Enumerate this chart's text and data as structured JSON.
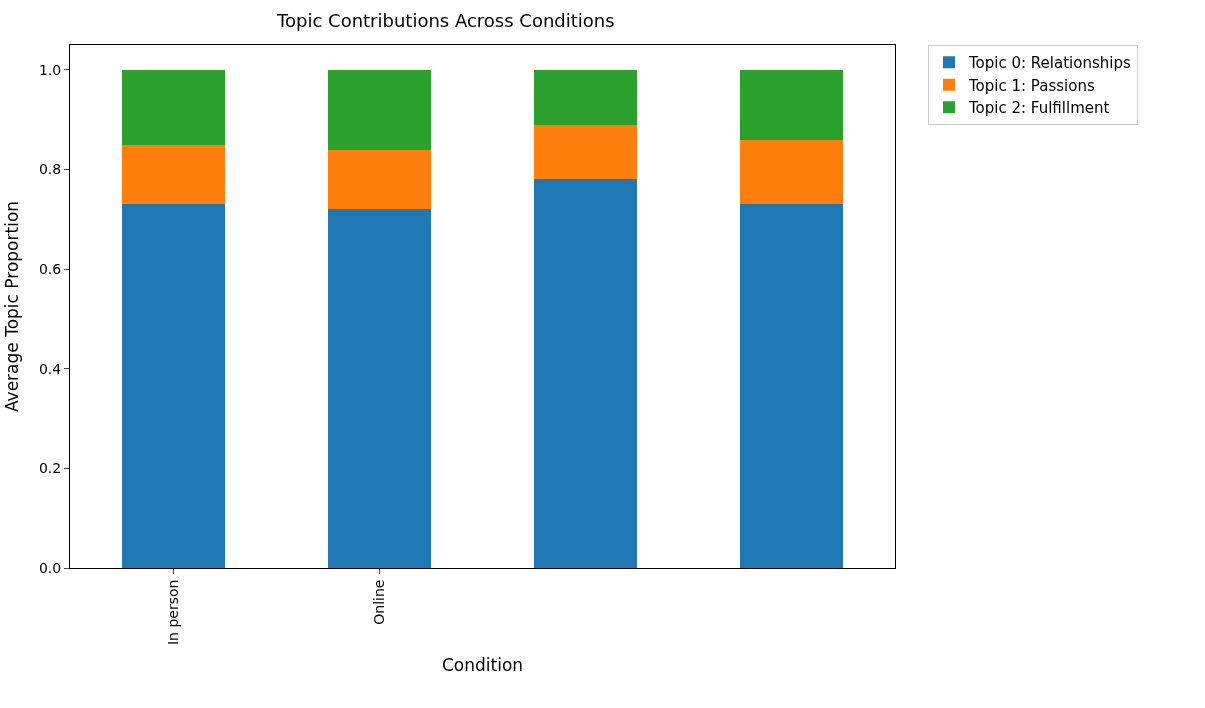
{
  "chart_data": {
    "type": "bar",
    "stacked": true,
    "title": "Topic Contributions Across Conditions",
    "xlabel": "Condition",
    "ylabel": "Average Topic Proportion",
    "categories": [
      "In person",
      "Online",
      null,
      null
    ],
    "series": [
      {
        "name": "Topic 0: Relationships",
        "color": "#1f77b4",
        "values": [
          0.73,
          0.72,
          0.78,
          0.73
        ]
      },
      {
        "name": "Topic 1: Passions",
        "color": "#ff7f0e",
        "values": [
          0.12,
          0.12,
          0.11,
          0.13
        ]
      },
      {
        "name": "Topic 2: Fulfillment",
        "color": "#2ca02c",
        "values": [
          0.15,
          0.16,
          0.11,
          0.14
        ]
      }
    ],
    "ylim": [
      0,
      1.05
    ],
    "yticks": [
      {
        "value": 0,
        "label": "0.0"
      },
      {
        "value": 0.2,
        "label": "0.2"
      },
      {
        "value": 0.4,
        "label": "0.4"
      },
      {
        "value": 0.6,
        "label": "0.6"
      },
      {
        "value": 0.8,
        "label": "0.8"
      },
      {
        "value": 1,
        "label": "1.0"
      }
    ],
    "legend": "top right"
  }
}
